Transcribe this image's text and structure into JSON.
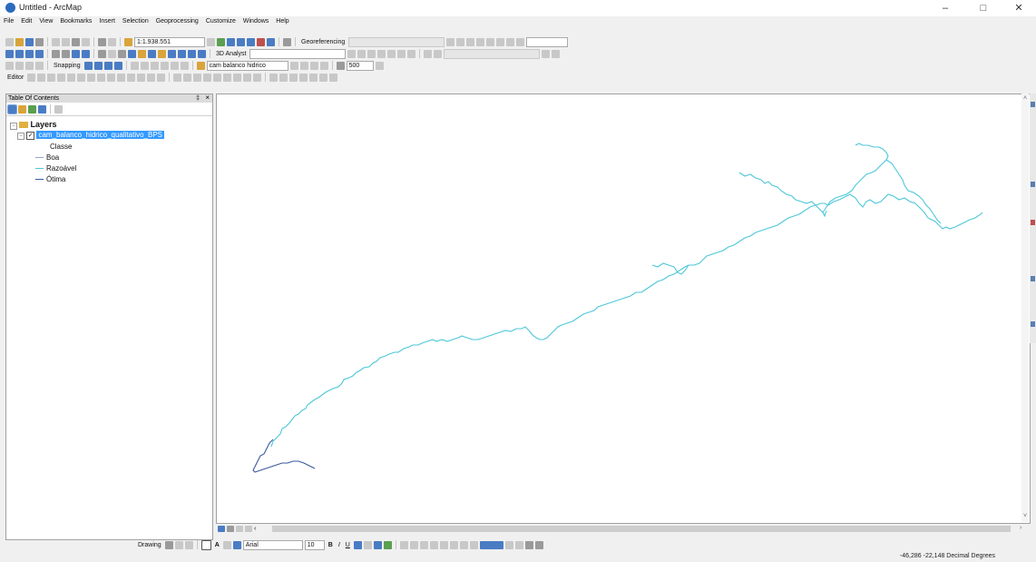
{
  "window": {
    "title": "Untitled - ArcMap"
  },
  "menu": [
    "File",
    "Edit",
    "View",
    "Bookmarks",
    "Insert",
    "Selection",
    "Geoprocessing",
    "Customize",
    "Windows",
    "Help"
  ],
  "toolbar": {
    "scale": "1:1.938.551",
    "georeferencing_label": "Georeferencing",
    "analyst_label": "3D Analyst",
    "snapping_label": "Snapping",
    "layer_combo": "cam balanco hidrico",
    "raster_resolution": "500",
    "editor_label": "Editor"
  },
  "toc": {
    "title": "Table Of Contents",
    "pin": "‡",
    "close": "×",
    "root_label": "Layers",
    "layer": {
      "name": "cam_balanco_hidrico_qualitativo_BPS",
      "checked": true,
      "selected": true
    },
    "legend_heading": "Classe",
    "legend": [
      {
        "label": "Boa",
        "color": "#8fa4c4"
      },
      {
        "label": "Razoável",
        "color": "#4cc7d8"
      },
      {
        "label": "Ótima",
        "color": "#3a5a9c"
      }
    ]
  },
  "map": {
    "line_color": "#4cc7d8",
    "dark_color": "#3a5a9c"
  },
  "drawing": {
    "label": "Drawing",
    "font": "Arial",
    "font_size": "10",
    "bold": "B",
    "italic": "I",
    "underline": "U",
    "text_tool": "A"
  },
  "status": {
    "coordinates": "-46,286  -22,148 Decimal Degrees"
  },
  "map_nav": {
    "left": "‹",
    "right": "›",
    "up": "˄",
    "down": "˅"
  }
}
